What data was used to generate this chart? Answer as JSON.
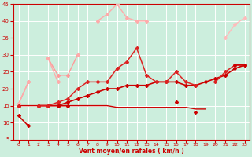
{
  "xlabel": "Vent moyen/en rafales ( km/h )",
  "background_color": "#cceedd",
  "grid_color": "#ffffff",
  "xlim": [
    -0.5,
    23.5
  ],
  "ylim": [
    5,
    45
  ],
  "xticks": [
    0,
    1,
    2,
    3,
    4,
    5,
    6,
    7,
    8,
    9,
    10,
    11,
    12,
    13,
    14,
    15,
    16,
    17,
    18,
    19,
    20,
    21,
    22,
    23
  ],
  "yticks": [
    5,
    10,
    15,
    20,
    25,
    30,
    35,
    40,
    45
  ],
  "series": [
    {
      "x": [
        0,
        1,
        2,
        3,
        4,
        5,
        6,
        7,
        8,
        9,
        10,
        11,
        12,
        13,
        14,
        15,
        16,
        17,
        18,
        19,
        20,
        21,
        22,
        23
      ],
      "y": [
        15.5,
        22,
        null,
        29,
        24,
        24,
        30,
        null,
        null,
        null,
        null,
        null,
        null,
        null,
        null,
        null,
        null,
        null,
        null,
        null,
        null,
        null,
        null,
        null
      ],
      "color": "#ff9999",
      "lw": 1.0,
      "marker": "D",
      "ms": 2.0,
      "alpha": 1.0
    },
    {
      "x": [
        0,
        1,
        2,
        3,
        4,
        5,
        6,
        7,
        8,
        9,
        10,
        11,
        12,
        13,
        14,
        15,
        16,
        17,
        18,
        19,
        20,
        21,
        22,
        23
      ],
      "y": [
        15.5,
        22,
        null,
        29,
        22,
        null,
        30,
        null,
        40,
        42,
        45,
        41,
        40,
        40,
        null,
        null,
        null,
        null,
        null,
        null,
        null,
        null,
        null,
        null
      ],
      "color": "#ffaaaa",
      "lw": 1.0,
      "marker": "D",
      "ms": 2.0,
      "alpha": 1.0
    },
    {
      "x": [
        0,
        1,
        2,
        3,
        4,
        5,
        6,
        7,
        8,
        9,
        10,
        11,
        12,
        13,
        14,
        15,
        16,
        17,
        18,
        19,
        20,
        21,
        22,
        23
      ],
      "y": [
        15.5,
        null,
        null,
        null,
        null,
        null,
        null,
        null,
        null,
        null,
        null,
        null,
        null,
        null,
        null,
        null,
        null,
        null,
        null,
        null,
        null,
        35,
        39,
        41
      ],
      "color": "#ffbbbb",
      "lw": 1.0,
      "marker": "D",
      "ms": 2.0,
      "alpha": 1.0
    },
    {
      "x": [
        0,
        1,
        2,
        3,
        4,
        5,
        6,
        7,
        8,
        9,
        10,
        11,
        12,
        13,
        14,
        15,
        16,
        17,
        18,
        19,
        20,
        21,
        22,
        23
      ],
      "y": [
        15.5,
        null,
        null,
        null,
        null,
        null,
        null,
        null,
        null,
        null,
        null,
        null,
        null,
        null,
        null,
        null,
        null,
        null,
        null,
        null,
        null,
        null,
        null,
        27.5
      ],
      "color": "#ffcccc",
      "lw": 1.0,
      "marker": null,
      "ms": 0,
      "alpha": 1.0
    },
    {
      "x": [
        0,
        1,
        2,
        3,
        4,
        5,
        6,
        7,
        8,
        9,
        10,
        11,
        12,
        13,
        14,
        15,
        16,
        17,
        18,
        19,
        20,
        21,
        22,
        23
      ],
      "y": [
        15.5,
        null,
        null,
        null,
        null,
        null,
        null,
        null,
        null,
        null,
        null,
        null,
        null,
        null,
        null,
        null,
        null,
        null,
        null,
        null,
        null,
        null,
        null,
        41
      ],
      "color": "#ffcccc",
      "lw": 1.0,
      "marker": null,
      "ms": 0,
      "alpha": 1.0
    },
    {
      "x": [
        0,
        1,
        2,
        3,
        4,
        5,
        6,
        7,
        8,
        9,
        10,
        11,
        12,
        13,
        14,
        15,
        16,
        17,
        18,
        19,
        20,
        21,
        22,
        23
      ],
      "y": [
        15,
        15,
        15,
        15,
        15,
        15,
        15,
        15,
        15,
        15,
        14.5,
        14.5,
        14.5,
        14.5,
        14.5,
        14.5,
        14.5,
        14.5,
        14,
        14,
        null,
        null,
        null,
        null
      ],
      "color": "#cc0000",
      "lw": 1.0,
      "marker": null,
      "ms": 0,
      "alpha": 1.0
    },
    {
      "x": [
        0,
        1,
        2,
        3,
        4,
        5,
        6,
        7,
        8,
        9,
        10,
        11,
        12,
        13,
        14,
        15,
        16,
        17,
        18,
        19,
        20,
        21,
        22,
        23
      ],
      "y": [
        15,
        null,
        15,
        15,
        15,
        16,
        17,
        18,
        19,
        20,
        20,
        21,
        21,
        21,
        22,
        22,
        22,
        21,
        21,
        22,
        23,
        24,
        26,
        27
      ],
      "color": "#cc0000",
      "lw": 1.2,
      "marker": "D",
      "ms": 2.0,
      "alpha": 1.0
    },
    {
      "x": [
        0,
        1,
        2,
        3,
        4,
        5,
        6,
        7,
        8,
        9,
        10,
        11,
        12,
        13,
        14,
        15,
        16,
        17,
        18,
        19,
        20,
        21,
        22,
        23
      ],
      "y": [
        15,
        null,
        15,
        15,
        16,
        17,
        20,
        22,
        22,
        22,
        26,
        28,
        32,
        24,
        22,
        22,
        25,
        22,
        21,
        null,
        22,
        25,
        27,
        27
      ],
      "color": "#dd2222",
      "lw": 1.1,
      "marker": "D",
      "ms": 2.0,
      "alpha": 1.0
    },
    {
      "x": [
        0,
        1,
        2,
        3,
        4,
        5,
        6,
        7,
        8,
        9,
        10,
        11,
        12,
        13,
        14,
        15,
        16,
        17,
        18,
        19,
        20,
        21,
        22,
        23
      ],
      "y": [
        12,
        9,
        null,
        null,
        15,
        15,
        null,
        null,
        null,
        null,
        null,
        null,
        null,
        null,
        null,
        null,
        16,
        null,
        13,
        null,
        null,
        null,
        27,
        27
      ],
      "color": "#cc0000",
      "lw": 1.1,
      "marker": "D",
      "ms": 2.0,
      "alpha": 1.0
    }
  ]
}
